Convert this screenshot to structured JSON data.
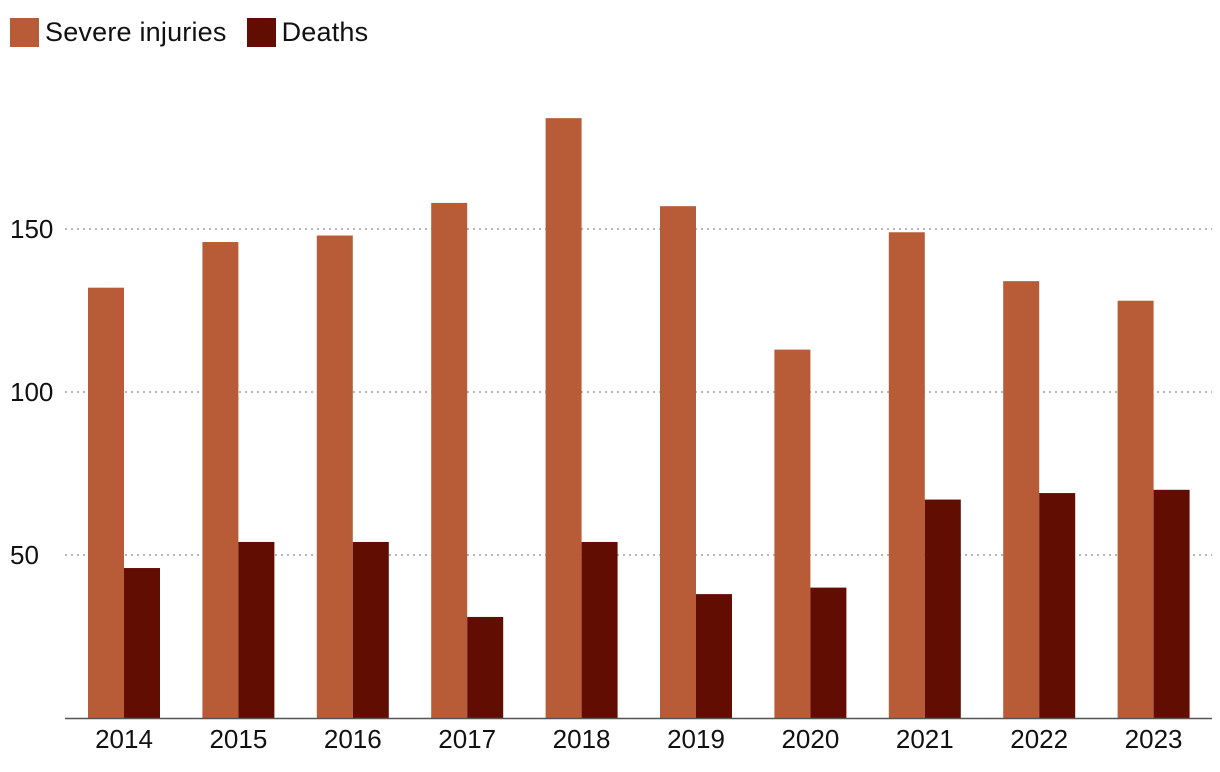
{
  "legend": {
    "items": [
      {
        "label": "Severe injuries",
        "color": "#b85c37"
      },
      {
        "label": "Deaths",
        "color": "#620d02"
      }
    ]
  },
  "chart_data": {
    "type": "bar",
    "categories": [
      "2014",
      "2015",
      "2016",
      "2017",
      "2018",
      "2019",
      "2020",
      "2021",
      "2022",
      "2023"
    ],
    "series": [
      {
        "name": "Severe injuries",
        "color": "#b85c37",
        "values": [
          132,
          146,
          148,
          158,
          184,
          157,
          113,
          149,
          134,
          128
        ]
      },
      {
        "name": "Deaths",
        "color": "#620d02",
        "values": [
          46,
          54,
          54,
          31,
          54,
          38,
          40,
          67,
          69,
          70
        ]
      }
    ],
    "yticks": [
      50,
      100,
      150
    ],
    "ylim": [
      0,
      200
    ],
    "grid": true,
    "legend_position": "top-left"
  }
}
